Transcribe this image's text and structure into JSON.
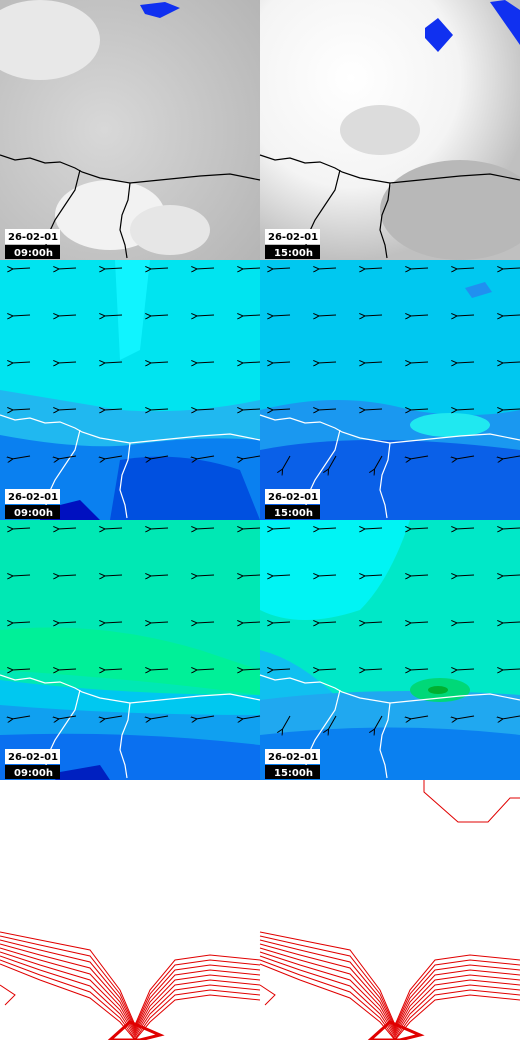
{
  "panels": [
    {
      "date": "26-02-01",
      "time": "09:00h"
    },
    {
      "date": "26-02-01",
      "time": "15:00h"
    },
    {
      "date": "26-02-01",
      "time": "09:00h"
    },
    {
      "date": "26-02-01",
      "time": "15:00h"
    },
    {
      "date": "26-02-01",
      "time": "09:00h"
    },
    {
      "date": "26-02-01",
      "time": "15:00h"
    }
  ]
}
